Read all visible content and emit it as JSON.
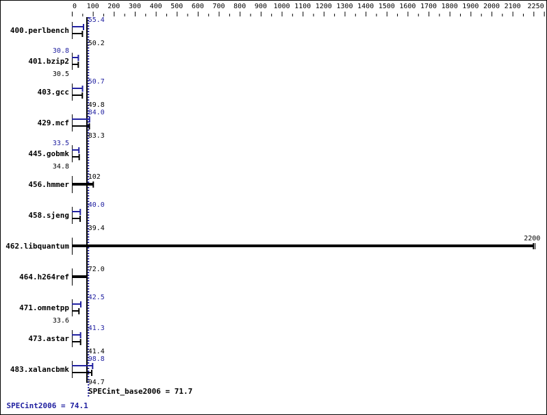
{
  "chart_data": {
    "type": "bar",
    "orientation": "horizontal",
    "xlim": [
      0,
      2250
    ],
    "x_ticks": [
      0,
      100,
      200,
      300,
      400,
      500,
      600,
      700,
      800,
      900,
      1000,
      1100,
      1200,
      1300,
      1400,
      1500,
      1600,
      1700,
      1800,
      1900,
      2000,
      2100,
      2250
    ],
    "x_axis_position": "top",
    "categories": [
      "400.perlbench",
      "401.bzip2",
      "403.gcc",
      "429.mcf",
      "445.gobmk",
      "456.hmmer",
      "458.sjeng",
      "462.libquantum",
      "464.h264ref",
      "471.omnetpp",
      "473.astar",
      "483.xalancbmk"
    ],
    "series": [
      {
        "name": "SPECint2006",
        "values": [
          55.4,
          30.8,
          50.7,
          84.0,
          33.5,
          null,
          40.0,
          null,
          null,
          42.5,
          41.3,
          98.8
        ]
      },
      {
        "name": "SPECint_base2006",
        "values": [
          50.2,
          30.5,
          49.8,
          83.3,
          34.8,
          102,
          39.4,
          2200,
          72.0,
          33.6,
          41.4,
          94.7
        ]
      }
    ],
    "value_labels": {
      "peak": [
        "55.4",
        "30.8",
        "50.7",
        "84.0",
        "33.5",
        "",
        "40.0",
        "",
        "",
        "42.5",
        "41.3",
        "98.8"
      ],
      "base": [
        "50.2",
        "30.5",
        "49.8",
        "83.3",
        "34.8",
        "102",
        "39.4",
        "2200",
        "72.0",
        "33.6",
        "41.4",
        "94.7"
      ]
    },
    "reference_lines": [
      {
        "label": "SPECint_base2006 = 71.7",
        "value": 71.7,
        "color": "#000000",
        "style": "solid"
      },
      {
        "label": "SPECint2006 = 74.1",
        "value": 74.1,
        "color": "#2020a0",
        "style": "dotted"
      }
    ],
    "colors": {
      "peak": "#2020a0",
      "base": "#000000"
    },
    "grid": false,
    "legend": "none"
  }
}
